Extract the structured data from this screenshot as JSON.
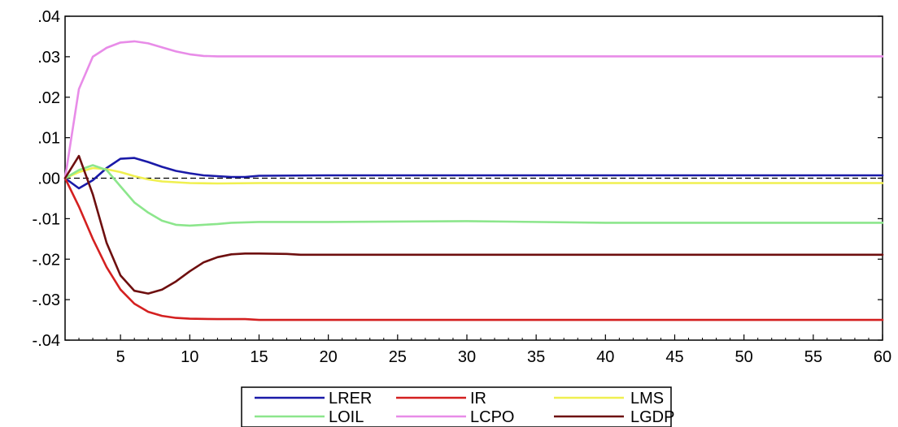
{
  "chart_data": {
    "type": "line",
    "title": "",
    "xlabel": "",
    "ylabel": "",
    "xlim": [
      1,
      60
    ],
    "ylim": [
      -0.04,
      0.04
    ],
    "x_ticks": [
      5,
      10,
      15,
      20,
      25,
      30,
      35,
      40,
      45,
      50,
      55,
      60
    ],
    "x_tick_labels": [
      "5",
      "10",
      "15",
      "20",
      "25",
      "30",
      "35",
      "40",
      "45",
      "50",
      "55",
      "60"
    ],
    "y_ticks": [
      0.04,
      0.03,
      0.02,
      0.01,
      0.0,
      -0.01,
      -0.02,
      -0.03,
      -0.04
    ],
    "y_tick_labels": [
      ".04",
      ".03",
      ".02",
      ".01",
      ".00",
      "-.01",
      "-.02",
      "-.03",
      "-.04"
    ],
    "zero_line": true,
    "grid": false,
    "legend_position": "bottom-center",
    "series": [
      {
        "name": "LRER",
        "color": "#1a1aa8",
        "points": [
          [
            1,
            0.0
          ],
          [
            2,
            -0.0025
          ],
          [
            3,
            -0.0005
          ],
          [
            4,
            0.0025
          ],
          [
            5,
            0.0048
          ],
          [
            6,
            0.005
          ],
          [
            7,
            0.004
          ],
          [
            8,
            0.0028
          ],
          [
            9,
            0.0018
          ],
          [
            10,
            0.0012
          ],
          [
            11,
            0.0007
          ],
          [
            12,
            0.0005
          ],
          [
            13,
            0.0003
          ],
          [
            14,
            0.0003
          ],
          [
            15,
            0.0006
          ],
          [
            20,
            0.0007
          ],
          [
            30,
            0.0007
          ],
          [
            40,
            0.0007
          ],
          [
            50,
            0.0007
          ],
          [
            60,
            0.0007
          ]
        ]
      },
      {
        "name": "IR",
        "color": "#d42020",
        "points": [
          [
            1,
            0.0
          ],
          [
            2,
            -0.007
          ],
          [
            3,
            -0.015
          ],
          [
            4,
            -0.022
          ],
          [
            5,
            -0.0275
          ],
          [
            6,
            -0.031
          ],
          [
            7,
            -0.033
          ],
          [
            8,
            -0.034
          ],
          [
            9,
            -0.0345
          ],
          [
            10,
            -0.0347
          ],
          [
            12,
            -0.0348
          ],
          [
            14,
            -0.0348
          ],
          [
            15,
            -0.035
          ],
          [
            20,
            -0.035
          ],
          [
            30,
            -0.035
          ],
          [
            40,
            -0.035
          ],
          [
            50,
            -0.035
          ],
          [
            60,
            -0.035
          ]
        ]
      },
      {
        "name": "LMS",
        "color": "#f0f050",
        "points": [
          [
            1,
            0.0
          ],
          [
            2,
            0.0015
          ],
          [
            3,
            0.0025
          ],
          [
            4,
            0.0022
          ],
          [
            5,
            0.0015
          ],
          [
            6,
            0.0005
          ],
          [
            7,
            -0.0003
          ],
          [
            8,
            -0.0008
          ],
          [
            10,
            -0.0012
          ],
          [
            12,
            -0.0013
          ],
          [
            15,
            -0.0012
          ],
          [
            20,
            -0.0012
          ],
          [
            30,
            -0.0012
          ],
          [
            40,
            -0.0012
          ],
          [
            50,
            -0.0012
          ],
          [
            60,
            -0.0012
          ]
        ]
      },
      {
        "name": "LOIL",
        "color": "#8ce68c",
        "points": [
          [
            1,
            0.0
          ],
          [
            2,
            0.002
          ],
          [
            3,
            0.0032
          ],
          [
            4,
            0.002
          ],
          [
            5,
            -0.002
          ],
          [
            6,
            -0.006
          ],
          [
            7,
            -0.0085
          ],
          [
            8,
            -0.0105
          ],
          [
            9,
            -0.0115
          ],
          [
            10,
            -0.0117
          ],
          [
            11,
            -0.0115
          ],
          [
            12,
            -0.0113
          ],
          [
            13,
            -0.011
          ],
          [
            15,
            -0.0108
          ],
          [
            20,
            -0.0108
          ],
          [
            30,
            -0.0106
          ],
          [
            40,
            -0.011
          ],
          [
            50,
            -0.011
          ],
          [
            60,
            -0.011
          ]
        ]
      },
      {
        "name": "LCPO",
        "color": "#e88ce8",
        "points": [
          [
            1,
            0.0
          ],
          [
            2,
            0.022
          ],
          [
            3,
            0.03
          ],
          [
            4,
            0.0322
          ],
          [
            5,
            0.0335
          ],
          [
            6,
            0.0338
          ],
          [
            7,
            0.0333
          ],
          [
            8,
            0.0323
          ],
          [
            9,
            0.0313
          ],
          [
            10,
            0.0306
          ],
          [
            11,
            0.0302
          ],
          [
            12,
            0.0301
          ],
          [
            15,
            0.0301
          ],
          [
            20,
            0.0301
          ],
          [
            30,
            0.0301
          ],
          [
            40,
            0.0301
          ],
          [
            50,
            0.0301
          ],
          [
            60,
            0.0301
          ]
        ]
      },
      {
        "name": "LGDP",
        "color": "#6e0f0f",
        "points": [
          [
            1,
            0.0
          ],
          [
            2,
            0.0055
          ],
          [
            3,
            -0.004
          ],
          [
            4,
            -0.016
          ],
          [
            5,
            -0.024
          ],
          [
            6,
            -0.0278
          ],
          [
            7,
            -0.0285
          ],
          [
            8,
            -0.0275
          ],
          [
            9,
            -0.0255
          ],
          [
            10,
            -0.023
          ],
          [
            11,
            -0.0208
          ],
          [
            12,
            -0.0195
          ],
          [
            13,
            -0.0188
          ],
          [
            14,
            -0.0186
          ],
          [
            15,
            -0.0186
          ],
          [
            17,
            -0.0187
          ],
          [
            18,
            -0.0189
          ],
          [
            20,
            -0.0189
          ],
          [
            30,
            -0.0189
          ],
          [
            40,
            -0.0189
          ],
          [
            50,
            -0.0189
          ],
          [
            60,
            -0.0189
          ]
        ]
      }
    ]
  }
}
